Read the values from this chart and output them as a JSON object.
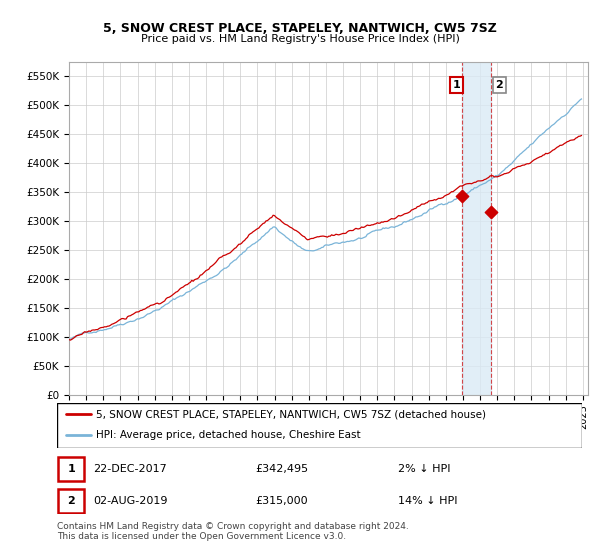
{
  "title": "5, SNOW CREST PLACE, STAPELEY, NANTWICH, CW5 7SZ",
  "subtitle": "Price paid vs. HM Land Registry's House Price Index (HPI)",
  "legend_line1": "5, SNOW CREST PLACE, STAPELEY, NANTWICH, CW5 7SZ (detached house)",
  "legend_line2": "HPI: Average price, detached house, Cheshire East",
  "footnote": "Contains HM Land Registry data © Crown copyright and database right 2024.\nThis data is licensed under the Open Government Licence v3.0.",
  "sale1_date": "22-DEC-2017",
  "sale1_price": "£342,495",
  "sale1_hpi": "2% ↓ HPI",
  "sale2_date": "02-AUG-2019",
  "sale2_price": "£315,000",
  "sale2_hpi": "14% ↓ HPI",
  "hpi_line_color": "#7ab4d8",
  "price_line_color": "#cc0000",
  "sale1_marker_color": "#cc0000",
  "sale2_marker_color": "#cc0000",
  "vline_color": "#cc0000",
  "span_color": "#daeaf5",
  "ylim": [
    0,
    575000
  ],
  "yticks": [
    0,
    50000,
    100000,
    150000,
    200000,
    250000,
    300000,
    350000,
    400000,
    450000,
    500000,
    550000
  ],
  "background_color": "#ffffff",
  "grid_color": "#cccccc",
  "sale1_year_val": 2017.958,
  "sale2_year_val": 2019.625,
  "sale1_price_val": 342495,
  "sale2_price_val": 315000
}
